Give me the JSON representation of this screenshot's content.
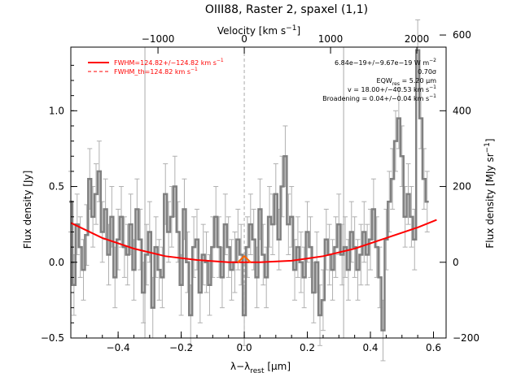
{
  "chart_data": {
    "type": "line",
    "title": "OIII88, Raster 2, spaxel (1,1)",
    "xlabel": "λ−λ_rest [μm]",
    "ylabel": "Flux density [Jy]",
    "ylabel_right": "Flux density [MJy sr⁻¹]",
    "xlabel_top": "Velocity [km s⁻¹]",
    "xlim": [
      -0.55,
      0.64
    ],
    "ylim": [
      -0.5,
      1.42
    ],
    "x_ticks": [
      -0.4,
      -0.2,
      0.0,
      0.2,
      0.4,
      0.6
    ],
    "x_tick_labels": [
      "−0.4",
      "−0.2",
      "0.0",
      "0.2",
      "0.4",
      "0.6"
    ],
    "y_ticks": [
      -0.5,
      0.0,
      0.5,
      1.0
    ],
    "y_tick_labels": [
      "−0.5",
      "0.0",
      "0.5",
      "1.0"
    ],
    "right_ticks": [
      -200,
      0,
      200,
      400,
      600
    ],
    "right_tick_labels": [
      "−200",
      "0",
      "200",
      "400",
      "600"
    ],
    "top_ticks": [
      -1000,
      0,
      1000,
      2000
    ],
    "top_tick_labels": [
      "−1000",
      "0",
      "1000",
      "2000"
    ],
    "vertical_lines": [
      -0.315,
      0.0,
      0.315
    ],
    "legend": [
      {
        "label": "FWHM=124.82+/−124.82 km s⁻¹",
        "color": "#ff0000",
        "style": "solid"
      },
      {
        "label": "FWHM_th=124.82 km s⁻¹",
        "color": "#ff0000",
        "style": "dashed"
      }
    ],
    "annotations": [
      "6.84e−19+/−9.67e−19 W m⁻²",
      "0.70σ",
      "EQW_res = 5.20 μm",
      "v = 18.00+/−40.53 km s⁻¹",
      "Broadening = 0.04+/−0.04 km s⁻¹"
    ],
    "fit_continuum": {
      "x": [
        -0.55,
        -0.45,
        -0.35,
        -0.25,
        -0.15,
        -0.05,
        0.05,
        0.15,
        0.25,
        0.35,
        0.45,
        0.55,
        0.61
      ],
      "y": [
        0.26,
        0.16,
        0.09,
        0.04,
        0.015,
        0.0,
        0.0,
        0.01,
        0.04,
        0.09,
        0.16,
        0.23,
        0.28
      ]
    },
    "fit_line": {
      "x": [
        -0.02,
        0.0,
        0.02
      ],
      "y": [
        0.0,
        0.04,
        0.0
      ]
    },
    "series": [
      {
        "x": [
          -0.55,
          -0.54,
          -0.53,
          -0.52,
          -0.51,
          -0.5,
          -0.49,
          -0.48,
          -0.47,
          -0.46,
          -0.45,
          -0.44,
          -0.43,
          -0.42,
          -0.41,
          -0.4,
          -0.39,
          -0.38,
          -0.37,
          -0.36,
          -0.35,
          -0.34,
          -0.33,
          -0.32,
          -0.31,
          -0.3,
          -0.29,
          -0.28,
          -0.27,
          -0.26,
          -0.25,
          -0.24,
          -0.23,
          -0.22,
          -0.21,
          -0.2,
          -0.19,
          -0.18,
          -0.17,
          -0.16,
          -0.15,
          -0.14,
          -0.13,
          -0.12,
          -0.11,
          -0.1,
          -0.09,
          -0.08,
          -0.07,
          -0.06,
          -0.05,
          -0.04,
          -0.03,
          -0.02,
          -0.01,
          0.0,
          0.01,
          0.02,
          0.03,
          0.04,
          0.05,
          0.06,
          0.07,
          0.08,
          0.09,
          0.1,
          0.11,
          0.12,
          0.13,
          0.14,
          0.15,
          0.16,
          0.17,
          0.18,
          0.19,
          0.2,
          0.21,
          0.22,
          0.23,
          0.24,
          0.25,
          0.26,
          0.27,
          0.28,
          0.29,
          0.3,
          0.31,
          0.32,
          0.33,
          0.34,
          0.35,
          0.36,
          0.37,
          0.38,
          0.39,
          0.4,
          0.41,
          0.42,
          0.43,
          0.44,
          0.45,
          0.46,
          0.47,
          0.48,
          0.49,
          0.5,
          0.51,
          0.52,
          0.53,
          0.54,
          0.55,
          0.56,
          0.57,
          0.58
        ],
        "y": [
          0.4,
          -0.15,
          0.25,
          0.1,
          -0.05,
          0.18,
          0.55,
          0.3,
          0.45,
          0.6,
          0.2,
          0.35,
          0.05,
          0.3,
          -0.1,
          0.15,
          0.3,
          0.1,
          0.05,
          0.25,
          -0.05,
          0.35,
          0.15,
          -0.2,
          0.05,
          0.2,
          -0.3,
          0.1,
          -0.05,
          -0.1,
          0.45,
          0.2,
          0.3,
          0.5,
          0.2,
          -0.15,
          0.35,
          0.0,
          -0.35,
          0.1,
          0.15,
          -0.2,
          0.05,
          0.0,
          -0.15,
          0.1,
          0.3,
          0.1,
          -0.1,
          0.25,
          0.1,
          -0.05,
          0.0,
          0.15,
          0.05,
          -0.35,
          0.1,
          0.25,
          0.15,
          -0.1,
          0.35,
          0.05,
          -0.1,
          0.3,
          0.25,
          0.45,
          0.15,
          0.5,
          0.7,
          0.25,
          0.3,
          -0.05,
          0.1,
          0.0,
          -0.1,
          0.2,
          0.1,
          -0.2,
          0.0,
          -0.35,
          -0.25,
          0.15,
          0.05,
          -0.05,
          0.1,
          0.25,
          0.05,
          0.1,
          -0.05,
          0.2,
          0.1,
          -0.05,
          0.05,
          0.2,
          0.05,
          0.15,
          0.35,
          0.1,
          -0.1,
          -0.45,
          0.15,
          0.4,
          0.55,
          0.8,
          0.95,
          0.7,
          0.3,
          0.45,
          0.3,
          0.15,
          1.4,
          0.95,
          0.55,
          0.4
        ],
        "err": [
          0.2,
          0.2,
          0.2,
          0.2,
          0.2,
          0.2,
          0.2,
          0.2,
          0.2,
          0.2,
          0.2,
          0.2,
          0.2,
          0.2,
          0.2,
          0.2,
          0.2,
          0.2,
          0.2,
          0.2,
          0.2,
          0.2,
          0.2,
          0.2,
          0.2,
          0.2,
          0.2,
          0.2,
          0.2,
          0.2,
          0.2,
          0.2,
          0.2,
          0.2,
          0.2,
          0.2,
          0.2,
          0.2,
          0.2,
          0.2,
          0.2,
          0.2,
          0.2,
          0.2,
          0.2,
          0.2,
          0.2,
          0.2,
          0.2,
          0.2,
          0.2,
          0.2,
          0.2,
          0.2,
          0.2,
          0.2,
          0.2,
          0.2,
          0.2,
          0.2,
          0.2,
          0.2,
          0.2,
          0.2,
          0.2,
          0.2,
          0.2,
          0.2,
          0.2,
          0.2,
          0.2,
          0.2,
          0.2,
          0.2,
          0.2,
          0.2,
          0.2,
          0.2,
          0.2,
          0.2,
          0.2,
          0.2,
          0.2,
          0.2,
          0.2,
          0.2,
          0.2,
          0.2,
          0.2,
          0.2,
          0.2,
          0.2,
          0.2,
          0.2,
          0.2,
          0.2,
          0.2,
          0.2,
          0.2,
          0.2,
          0.2,
          0.2,
          0.2,
          0.2,
          0.2,
          0.2,
          0.2,
          0.2,
          0.2,
          0.2,
          0.2,
          0.2,
          0.2,
          0.2
        ]
      }
    ]
  },
  "colors": {
    "data": "#808080",
    "fit": "#ff0000",
    "line_fit": "#ff6600",
    "vline": "#aaaaaa"
  }
}
